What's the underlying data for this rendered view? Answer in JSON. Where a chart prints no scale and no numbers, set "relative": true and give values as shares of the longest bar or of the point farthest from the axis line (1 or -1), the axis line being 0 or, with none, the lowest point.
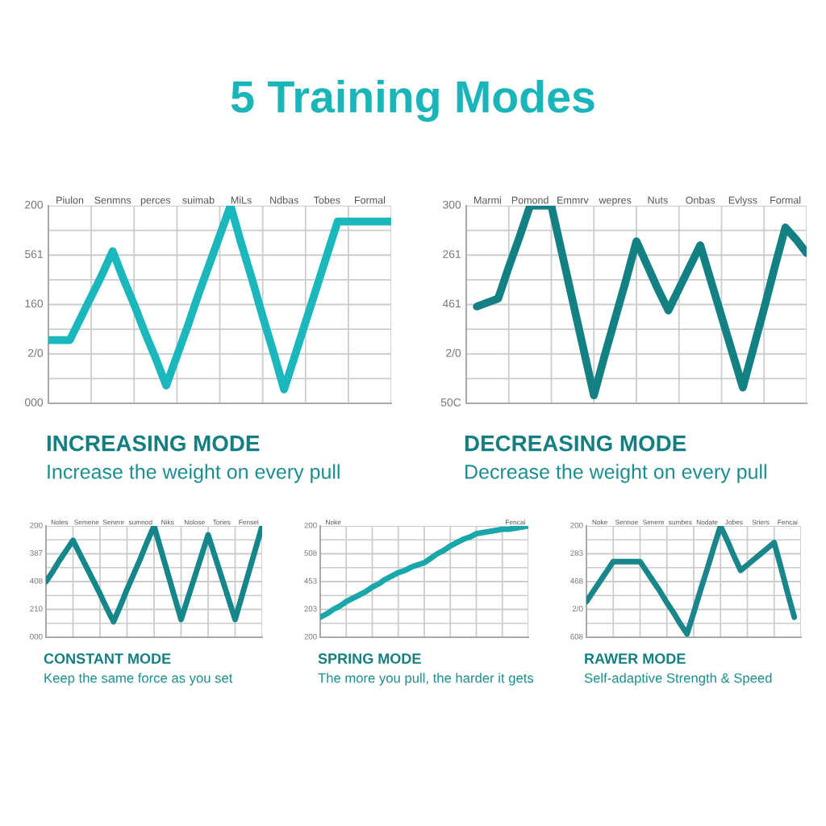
{
  "chart_data": [
    {
      "type": "other",
      "title": "5 Training Modes"
    },
    {
      "type": "line",
      "relative": true,
      "grid": true,
      "title": "INCREASING MODE",
      "subtitle": "Increase the weight on every pull",
      "annotations": [
        "200",
        "561",
        "160",
        "2/0",
        "000"
      ],
      "categories": [
        null,
        null,
        "Piulon",
        null,
        null,
        null,
        "Senmns",
        null,
        null,
        null,
        "perces",
        null,
        null,
        null,
        "suimab",
        null,
        null,
        null,
        "MiLs",
        null,
        null,
        null,
        "Ndbas",
        null,
        null,
        null,
        "Tobes",
        null,
        null,
        null,
        "Formal",
        null,
        null
      ],
      "series": [
        {
          "color": "#1ab8bd",
          "values": [
            0.32,
            0.32,
            0.32,
            0.43,
            0.54,
            0.65,
            0.77,
            0.63,
            0.5,
            0.36,
            0.23,
            0.09,
            0.24,
            0.39,
            0.55,
            0.7,
            0.85,
            1,
            0.81,
            0.63,
            0.44,
            0.26,
            0.07,
            0.24,
            0.41,
            0.58,
            0.75,
            0.92,
            0.92,
            0.92,
            0.92,
            0.92,
            0.92
          ]
        }
      ]
    },
    {
      "type": "line",
      "relative": true,
      "grid": true,
      "title": "DECREASING MODE",
      "subtitle": "Decrease the weight on every pull",
      "annotations": [
        "300",
        "261",
        "461",
        "2/0",
        "50C"
      ],
      "categories": [
        null,
        null,
        "Marmi",
        null,
        null,
        null,
        "Pomond",
        null,
        null,
        null,
        "Emmrv",
        null,
        null,
        null,
        "wepres",
        null,
        null,
        null,
        "Nuts",
        null,
        null,
        null,
        "Onbas",
        null,
        null,
        null,
        "Evlyss",
        null,
        null,
        null,
        "Formal",
        null,
        null
      ],
      "series": [
        {
          "color": "#138184",
          "values": [
            null,
            0.49,
            0.51,
            0.53,
            0.69,
            0.84,
            1,
            1,
            1,
            0.76,
            0.52,
            0.28,
            0.04,
            0.24,
            0.43,
            0.62,
            0.82,
            0.7,
            0.58,
            0.47,
            0.58,
            0.69,
            0.8,
            0.62,
            0.44,
            0.26,
            0.08,
            0.28,
            0.48,
            0.69,
            0.89,
            0.83,
            0.76
          ]
        }
      ]
    },
    {
      "type": "line",
      "relative": true,
      "grid": true,
      "title": "CONSTANT MODE",
      "subtitle": "Keep the same force as you set",
      "annotations": [
        "200",
        "387",
        "408",
        "210",
        "000"
      ],
      "categories": [
        null,
        null,
        "Noles",
        null,
        null,
        null,
        "Semene",
        null,
        null,
        null,
        "Senere",
        null,
        null,
        null,
        "sumnod",
        null,
        null,
        null,
        "Niks",
        null,
        null,
        null,
        "Nolose",
        null,
        null,
        null,
        "Tories",
        null,
        null,
        null,
        "Fensel",
        null,
        null
      ],
      "series": [
        {
          "color": "#15878a",
          "values": [
            0.5,
            0.59,
            0.69,
            0.78,
            0.87,
            0.75,
            0.63,
            0.51,
            0.39,
            0.26,
            0.14,
            0.28,
            0.43,
            0.57,
            0.71,
            0.86,
            1,
            0.79,
            0.58,
            0.37,
            0.16,
            0.35,
            0.54,
            0.73,
            0.92,
            0.73,
            0.54,
            0.35,
            0.16,
            0.37,
            0.58,
            0.79,
            1
          ]
        }
      ]
    },
    {
      "type": "line",
      "relative": true,
      "grid": true,
      "title": "SPRING MODE",
      "subtitle": "The more you pull, the harder it gets",
      "annotations": [
        "200",
        "508",
        "453",
        "203",
        "200"
      ],
      "categories": [
        null,
        null,
        "Noke",
        null,
        null,
        null,
        null,
        null,
        null,
        null,
        null,
        null,
        null,
        null,
        null,
        null,
        null,
        null,
        null,
        null,
        null,
        null,
        null,
        null,
        null,
        null,
        null,
        null,
        null,
        null,
        "Fencai",
        null,
        null
      ],
      "series": [
        {
          "color": "#1aa7ab",
          "values": [
            0.18,
            0.21,
            0.25,
            0.28,
            0.32,
            0.35,
            0.38,
            0.41,
            0.45,
            0.48,
            0.52,
            0.55,
            0.58,
            0.6,
            0.63,
            0.65,
            0.67,
            0.71,
            0.75,
            0.78,
            0.82,
            0.85,
            0.88,
            0.9,
            0.93,
            0.94,
            0.95,
            0.96,
            0.97,
            0.97,
            0.98,
            0.99,
            1
          ]
        }
      ]
    },
    {
      "type": "line",
      "relative": true,
      "grid": true,
      "title": "RAWER MODE",
      "subtitle": "Self-adaptive Strength & Speed",
      "annotations": [
        "200",
        "283",
        "468",
        "2/0",
        "608"
      ],
      "categories": [
        null,
        null,
        "Noke",
        null,
        null,
        null,
        "Sennoe",
        null,
        null,
        null,
        "Senere",
        null,
        null,
        null,
        "sumbes",
        null,
        null,
        null,
        "Nodate",
        null,
        null,
        null,
        "Jobes",
        null,
        null,
        null,
        "Sriers",
        null,
        null,
        null,
        "Fencai",
        null,
        null
      ],
      "series": [
        {
          "color": "#18868a",
          "values": [
            0.32,
            0.41,
            0.5,
            0.59,
            0.68,
            0.68,
            0.68,
            0.68,
            0.68,
            0.59,
            0.5,
            0.41,
            0.31,
            0.22,
            0.12,
            0.03,
            0.22,
            0.42,
            0.61,
            0.81,
            1,
            0.87,
            0.73,
            0.6,
            0.65,
            0.7,
            0.75,
            0.8,
            0.85,
            0.63,
            0.4,
            0.18,
            null
          ]
        }
      ]
    }
  ]
}
